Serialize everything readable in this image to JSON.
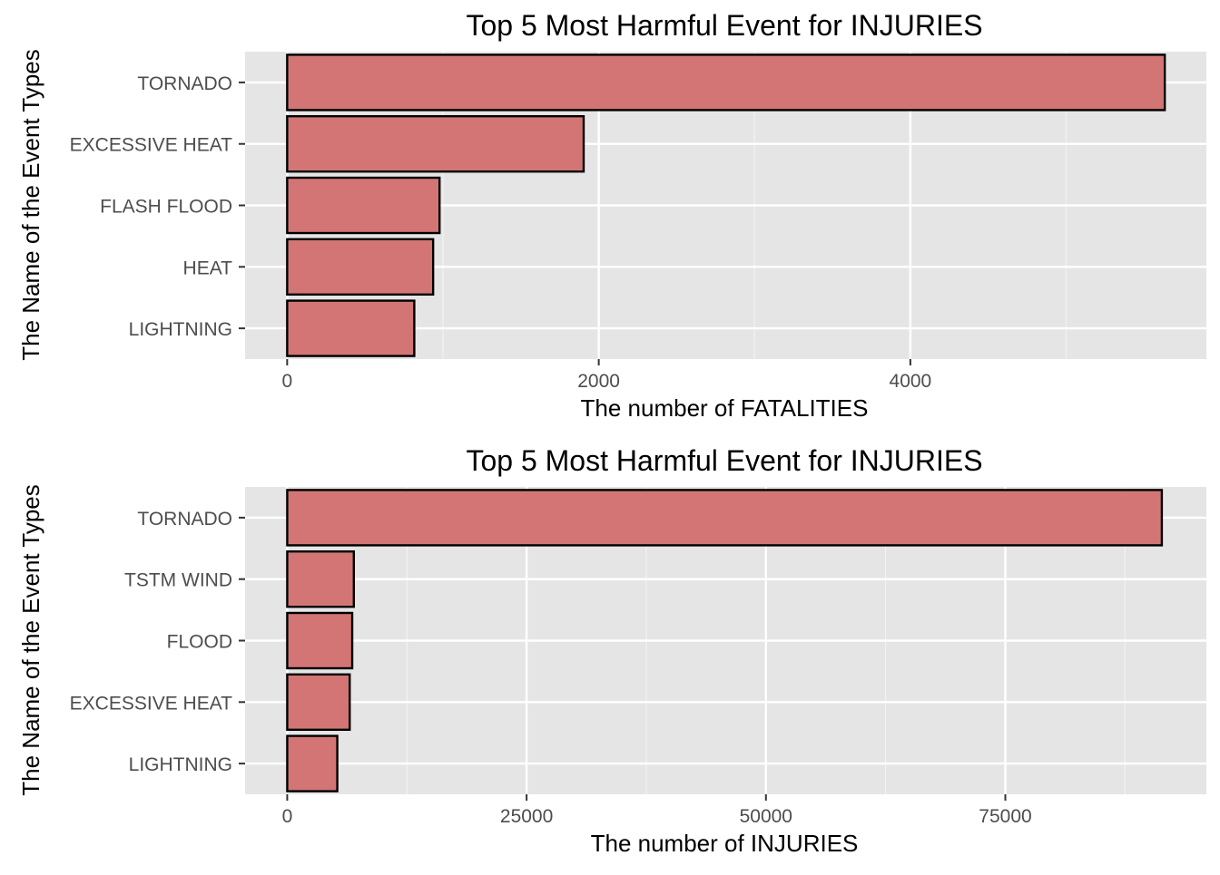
{
  "chart_data": [
    {
      "type": "bar",
      "orientation": "horizontal",
      "title": "Top 5 Most Harmful Event for INJURIES",
      "xlabel": "The number of FATALITIES",
      "ylabel": "The Name of the Event Types",
      "categories": [
        "TORNADO",
        "EXCESSIVE HEAT",
        "FLASH FLOOD",
        "HEAT",
        "LIGHTNING"
      ],
      "values": [
        5633,
        1903,
        978,
        937,
        816
      ],
      "xlim": [
        -270,
        5900
      ],
      "xticks": [
        0,
        2000,
        4000
      ],
      "xtick_labels": [
        "0",
        "2000",
        "4000"
      ],
      "grid": true,
      "bar_color": "#d37575",
      "bar_edge_color": "#000000",
      "panel_background": "#e5e5e5"
    },
    {
      "type": "bar",
      "orientation": "horizontal",
      "title": "Top 5 Most Harmful Event for INJURIES",
      "xlabel": "The number of INJURIES",
      "ylabel": "The Name of the Event Types",
      "categories": [
        "TORNADO",
        "TSTM WIND",
        "FLOOD",
        "EXCESSIVE HEAT",
        "LIGHTNING"
      ],
      "values": [
        91346,
        6957,
        6789,
        6525,
        5230
      ],
      "xlim": [
        -4400,
        96000
      ],
      "xticks": [
        0,
        25000,
        50000,
        75000
      ],
      "xtick_labels": [
        "0",
        "25000",
        "50000",
        "75000"
      ],
      "grid": true,
      "bar_color": "#d37575",
      "bar_edge_color": "#000000",
      "panel_background": "#e5e5e5"
    }
  ]
}
